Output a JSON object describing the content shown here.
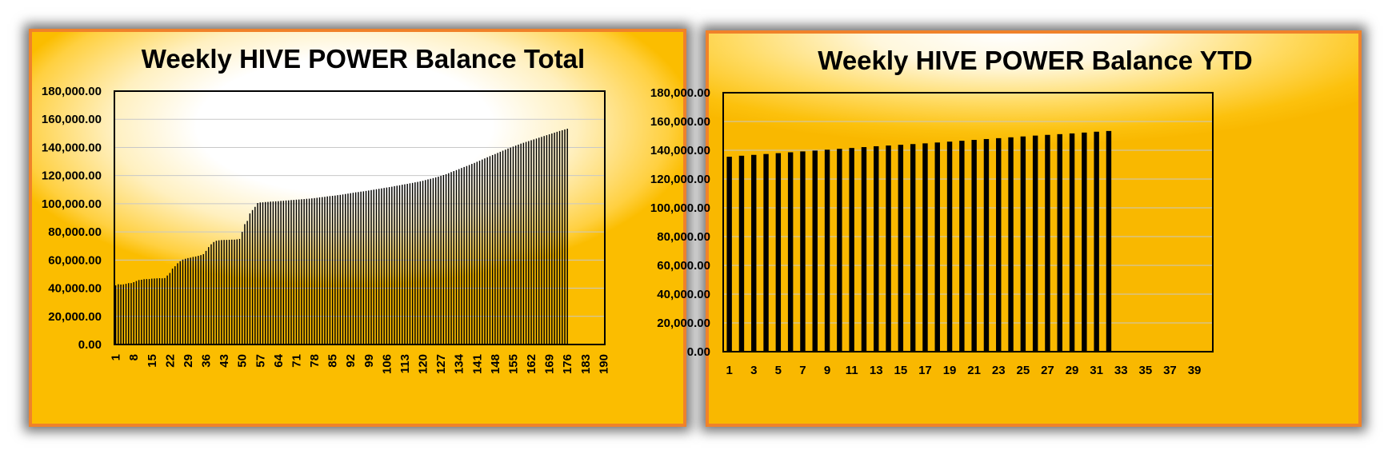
{
  "chart_data": [
    {
      "type": "bar",
      "title": "Weekly HIVE POWER Balance Total",
      "xlabel": "",
      "ylabel": "",
      "ylim": [
        0,
        180000
      ],
      "ytick_labels": [
        "0.00",
        "20,000.00",
        "40,000.00",
        "60,000.00",
        "80,000.00",
        "100,000.00",
        "120,000.00",
        "140,000.00",
        "160,000.00",
        "180,000.00"
      ],
      "xtick_labels": [
        "1",
        "8",
        "15",
        "22",
        "29",
        "36",
        "43",
        "50",
        "57",
        "64",
        "71",
        "78",
        "85",
        "92",
        "99",
        "106",
        "113",
        "120",
        "127",
        "134",
        "141",
        "148",
        "155",
        "162",
        "169",
        "176",
        "183",
        "190"
      ],
      "x_range": [
        1,
        190
      ],
      "grid": true,
      "legend": "none",
      "bar_color": "#000000",
      "values": [
        42000,
        42800,
        42600,
        42700,
        43100,
        43600,
        43600,
        44300,
        45100,
        45800,
        46000,
        46400,
        46500,
        46500,
        46800,
        46900,
        47000,
        47100,
        47000,
        47200,
        49000,
        50800,
        53900,
        55600,
        57700,
        59200,
        60300,
        60900,
        61400,
        61700,
        62200,
        62500,
        63000,
        63500,
        64200,
        66500,
        69200,
        71200,
        72800,
        73700,
        74000,
        74200,
        74300,
        74300,
        74400,
        74500,
        74500,
        74700,
        75000,
        80000,
        85500,
        87800,
        93100,
        95500,
        97800,
        100500,
        100900,
        101000,
        101200,
        101300,
        101500,
        101600,
        101700,
        101800,
        102000,
        102100,
        102300,
        102400,
        102600,
        102700,
        102900,
        103000,
        103200,
        103300,
        103500,
        103600,
        103800,
        104000,
        104200,
        104500,
        104700,
        104900,
        105200,
        105400,
        105600,
        105800,
        106100,
        106300,
        106600,
        106900,
        107200,
        107500,
        107800,
        108100,
        108300,
        108600,
        108800,
        109100,
        109400,
        109700,
        110000,
        110300,
        110600,
        110900,
        111200,
        111500,
        111800,
        112100,
        112500,
        112800,
        113100,
        113500,
        113800,
        114100,
        114500,
        114800,
        115200,
        115500,
        115900,
        116300,
        116800,
        117300,
        117700,
        118200,
        118700,
        119200,
        119800,
        120400,
        121000,
        121700,
        122500,
        123200,
        123900,
        124600,
        125400,
        126100,
        126800,
        127500,
        128300,
        129000,
        129800,
        130600,
        131400,
        132200,
        133000,
        133800,
        134600,
        135300,
        136100,
        136900,
        137700,
        138400,
        139200,
        139900,
        140600,
        141300,
        142000,
        142700,
        143300,
        143900,
        144500,
        145100,
        145700,
        146300,
        146900,
        147500,
        148100,
        148700,
        149300,
        149900,
        150500,
        151100,
        151700,
        152200,
        152800,
        153300
      ]
    },
    {
      "type": "bar",
      "title": "Weekly HIVE POWER Balance YTD",
      "xlabel": "",
      "ylabel": "",
      "ylim": [
        0,
        180000
      ],
      "ytick_labels": [
        "0.00",
        "20,000.00",
        "40,000.00",
        "60,000.00",
        "80,000.00",
        "100,000.00",
        "120,000.00",
        "140,000.00",
        "160,000.00",
        "180,000.00"
      ],
      "xtick_labels": [
        "1",
        "3",
        "5",
        "7",
        "9",
        "11",
        "13",
        "15",
        "17",
        "19",
        "21",
        "23",
        "25",
        "27",
        "29",
        "31",
        "33",
        "35",
        "37",
        "39"
      ],
      "x_range": [
        1,
        40
      ],
      "grid": true,
      "legend": "none",
      "bar_color": "#000000",
      "values": [
        135500,
        136200,
        136800,
        137400,
        138000,
        138600,
        139200,
        139800,
        140400,
        141000,
        141600,
        142200,
        142800,
        143300,
        143800,
        144300,
        144800,
        145400,
        146000,
        146600,
        147200,
        147800,
        148400,
        149000,
        149600,
        150200,
        150700,
        151200,
        151700,
        152300,
        152900,
        153400
      ]
    }
  ]
}
